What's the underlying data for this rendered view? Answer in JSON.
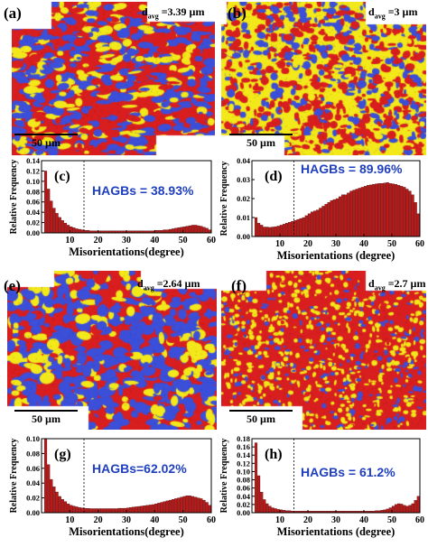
{
  "panels": [
    {
      "id": "a",
      "label": "(a)",
      "davg_prefix": "d",
      "davg_sub": "avg",
      "davg_value": " =3.39 µm",
      "scale": "50 µm"
    },
    {
      "id": "b",
      "label": "(b)",
      "davg_prefix": "d",
      "davg_sub": "avg",
      "davg_value": " =3 µm",
      "scale": "50 µm"
    },
    {
      "id": "e",
      "label": "(e)",
      "davg_prefix": "d",
      "davg_sub": "avg",
      "davg_value": " =2.64 µm",
      "scale": "50 µm"
    },
    {
      "id": "f",
      "label": "(f)",
      "davg_prefix": "d",
      "davg_sub": "avg",
      "davg_value": " =2.7 µm",
      "scale": "50 µm"
    }
  ],
  "colors": {
    "red": "#d81e1e",
    "blue": "#3b4fd9",
    "yellow": "#f2e81a",
    "bar": "#b81a1a",
    "text_blue": "#1f3fbf"
  },
  "chart_data": [
    {
      "type": "bar",
      "label": "(c)",
      "hagb": "HAGBs = 38.93%",
      "ylabel": "Relative Frequency",
      "xlabel": "Misorientations(degree)",
      "xlim": [
        0,
        60
      ],
      "ylim": [
        0,
        0.14
      ],
      "xticks": [
        "10",
        "20",
        "30",
        "40",
        "50",
        "60"
      ],
      "yticks": [
        "0.00",
        "0.02",
        "0.04",
        "0.06",
        "0.08",
        "0.10",
        "0.12",
        "0.14"
      ],
      "threshold": 15,
      "values": [
        0.12,
        0.085,
        0.062,
        0.048,
        0.038,
        0.03,
        0.024,
        0.019,
        0.015,
        0.012,
        0.01,
        0.008,
        0.007,
        0.006,
        0.005,
        0.005,
        0.004,
        0.004,
        0.004,
        0.004,
        0.004,
        0.004,
        0.004,
        0.004,
        0.004,
        0.004,
        0.004,
        0.004,
        0.004,
        0.004,
        0.004,
        0.004,
        0.004,
        0.004,
        0.004,
        0.004,
        0.004,
        0.004,
        0.004,
        0.005,
        0.005,
        0.005,
        0.006,
        0.006,
        0.007,
        0.008,
        0.009,
        0.01,
        0.011,
        0.012,
        0.013,
        0.014,
        0.015,
        0.015,
        0.014,
        0.013,
        0.011,
        0.009,
        0.006
      ]
    },
    {
      "type": "bar",
      "label": "(d)",
      "hagb": "HAGBs = 89.96%",
      "ylabel": "Relative Frequency",
      "xlabel": "Misorientations (degree)",
      "xlim": [
        0,
        60
      ],
      "ylim": [
        0,
        0.04
      ],
      "xticks": [
        "10",
        "20",
        "30",
        "40",
        "50",
        "60"
      ],
      "yticks": [
        "0.00",
        "0.01",
        "0.02",
        "0.03",
        "0.04"
      ],
      "threshold": 15,
      "values": [
        0.01,
        0.007,
        0.006,
        0.005,
        0.005,
        0.0048,
        0.005,
        0.0052,
        0.0055,
        0.006,
        0.0065,
        0.007,
        0.0075,
        0.008,
        0.0085,
        0.009,
        0.0095,
        0.01,
        0.011,
        0.012,
        0.013,
        0.0135,
        0.014,
        0.015,
        0.016,
        0.017,
        0.018,
        0.019,
        0.0195,
        0.02,
        0.021,
        0.022,
        0.022,
        0.023,
        0.024,
        0.0245,
        0.025,
        0.0255,
        0.026,
        0.0265,
        0.027,
        0.0272,
        0.0275,
        0.0278,
        0.028,
        0.028,
        0.0282,
        0.0285,
        0.028,
        0.0278,
        0.0275,
        0.027,
        0.0265,
        0.026,
        0.025,
        0.024,
        0.022,
        0.018,
        0.012
      ]
    },
    {
      "type": "bar",
      "label": "(g)",
      "hagb": "HAGBs=62.02%",
      "ylabel": "Relative Frequency",
      "xlabel": "Misorientations(degree)",
      "xlim": [
        0,
        60
      ],
      "ylim": [
        0,
        0.1
      ],
      "xticks": [
        "10",
        "20",
        "30",
        "40",
        "50",
        "60"
      ],
      "yticks": [
        "0.00",
        "0.02",
        "0.04",
        "0.06",
        "0.08",
        "0.10"
      ],
      "threshold": 15,
      "values": [
        0.1,
        0.065,
        0.045,
        0.035,
        0.028,
        0.022,
        0.018,
        0.015,
        0.012,
        0.01,
        0.009,
        0.008,
        0.007,
        0.0065,
        0.006,
        0.0058,
        0.0055,
        0.0055,
        0.0055,
        0.0055,
        0.0055,
        0.0055,
        0.0055,
        0.0055,
        0.0055,
        0.0055,
        0.006,
        0.006,
        0.006,
        0.0065,
        0.007,
        0.0075,
        0.008,
        0.0085,
        0.009,
        0.0095,
        0.01,
        0.0105,
        0.011,
        0.012,
        0.013,
        0.014,
        0.015,
        0.016,
        0.017,
        0.018,
        0.019,
        0.02,
        0.021,
        0.022,
        0.023,
        0.023,
        0.022,
        0.021,
        0.02,
        0.019,
        0.017,
        0.014,
        0.01
      ]
    },
    {
      "type": "bar",
      "label": "(h)",
      "hagb": "HAGBs = 61.2%",
      "ylabel": "Relative Frequency",
      "xlabel": "Misorientations (degree)",
      "xlim": [
        0,
        60
      ],
      "ylim": [
        0,
        0.18
      ],
      "xticks": [
        "10",
        "20",
        "30",
        "40",
        "50",
        "60"
      ],
      "yticks": [
        "0.00",
        "0.02",
        "0.04",
        "0.06",
        "0.08",
        "0.10",
        "0.12",
        "0.14",
        "0.16",
        "0.18"
      ],
      "threshold": 15,
      "values": [
        0.17,
        0.09,
        0.05,
        0.032,
        0.022,
        0.016,
        0.012,
        0.01,
        0.008,
        0.007,
        0.006,
        0.005,
        0.005,
        0.004,
        0.004,
        0.004,
        0.004,
        0.004,
        0.004,
        0.004,
        0.004,
        0.004,
        0.004,
        0.004,
        0.004,
        0.004,
        0.004,
        0.004,
        0.004,
        0.004,
        0.004,
        0.004,
        0.004,
        0.004,
        0.004,
        0.004,
        0.004,
        0.004,
        0.004,
        0.004,
        0.004,
        0.004,
        0.004,
        0.005,
        0.005,
        0.006,
        0.007,
        0.009,
        0.012,
        0.016,
        0.02,
        0.022,
        0.021,
        0.018,
        0.016,
        0.018,
        0.022,
        0.03,
        0.04
      ]
    }
  ]
}
